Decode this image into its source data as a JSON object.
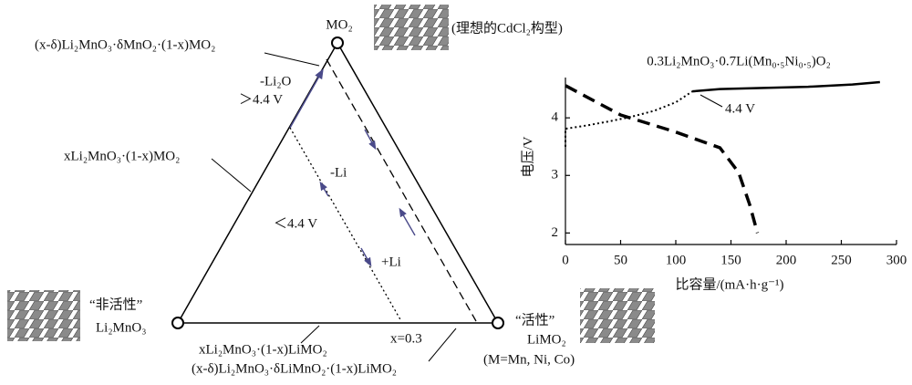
{
  "diagram": {
    "labels": [
      "MO₂",
      "(理想的CdCl₂构型)",
      "(x-δ)Li₂MnO₃·δMnO₂·(1-x)MO₂",
      "-Li₂O",
      "＞4.4 V",
      "xLi₂MnO₃·(1-x)MO₂",
      "-Li",
      "＜4.4 V",
      "+Li",
      "“非活性”",
      "Li₂MnO₃",
      "x=0.3",
      "xLi₂MnO₃·(1-x)LiMO₂",
      "(x-δ)Li₂MnO₃·δLiMnO₂·(1-x)LiMO₂",
      "“活性”",
      "LiMO₂",
      "(M=Mn, Ni, Co)"
    ]
  },
  "chart_data": {
    "type": "line",
    "title": "0.3Li₂MnO₃·0.7Li(Mn₀.₅Ni₀.₅)O₂",
    "x_label": "比容量/(mA·h·g⁻¹)",
    "y_label": "电压/V",
    "annotation": "4.4 V",
    "xlim": [
      0,
      300
    ],
    "xticks": [
      0,
      50,
      100,
      150,
      200,
      250,
      300
    ],
    "ylim": [
      1.8,
      4.7
    ],
    "yticks": [
      2,
      3,
      4
    ],
    "series": [
      {
        "color": "#000000",
        "style": "dotted",
        "x": [
          0,
          0,
          0,
          20,
          40,
          60,
          80,
          100,
          115
        ],
        "values": [
          3.5,
          3.65,
          3.81,
          3.87,
          3.94,
          4.02,
          4.12,
          4.27,
          4.46
        ]
      },
      {
        "color": "#000000",
        "style": "solid",
        "x": [
          115,
          140,
          180,
          220,
          260,
          285
        ],
        "values": [
          4.46,
          4.5,
          4.52,
          4.54,
          4.58,
          4.62
        ]
      },
      {
        "color": "#000000",
        "style": "dashed",
        "x": [
          0,
          50,
          99,
          140,
          157,
          167,
          174
        ],
        "values": [
          4.56,
          4.05,
          3.76,
          3.48,
          3.05,
          2.49,
          2.0
        ]
      }
    ]
  }
}
